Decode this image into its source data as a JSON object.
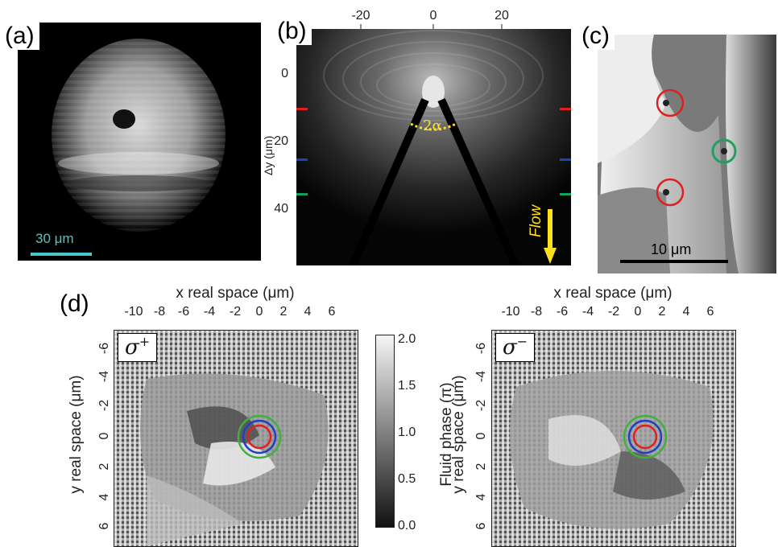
{
  "panels": {
    "a": {
      "label": "(a)",
      "scalebar": "30 μm"
    },
    "b": {
      "label": "(b)",
      "x_ticks": [
        "-20",
        "0",
        "20"
      ],
      "y_ticks": [
        "0",
        "20",
        "40"
      ],
      "ylabel": "Δy (μm)",
      "angle_label": "2α",
      "flow_label": "Flow",
      "marker_colors": [
        "#e02020",
        "#2040c0",
        "#10a060"
      ]
    },
    "c": {
      "label": "(c)",
      "scalebar": "10 μm"
    },
    "d": {
      "label": "(d)",
      "xlabel": "x real space (μm)",
      "ylabel": "y real space (μm)",
      "x_ticks": [
        "-10",
        "-8",
        "-6",
        "-4",
        "-2",
        "0",
        "2",
        "4",
        "6"
      ],
      "y_ticks": [
        "-6",
        "-4",
        "-2",
        "0",
        "2",
        "4",
        "6"
      ],
      "left_sigma": "σ",
      "left_sigma_sup": "+",
      "right_sigma": "σ",
      "right_sigma_sup": "−",
      "colorbar_label": "Fluid phase (π)",
      "colorbar_ticks": [
        "2.0",
        "1.5",
        "1.0",
        "0.5",
        "0.0"
      ],
      "circle_colors": [
        "#e02020",
        "#2040c0",
        "#40b040"
      ]
    }
  }
}
